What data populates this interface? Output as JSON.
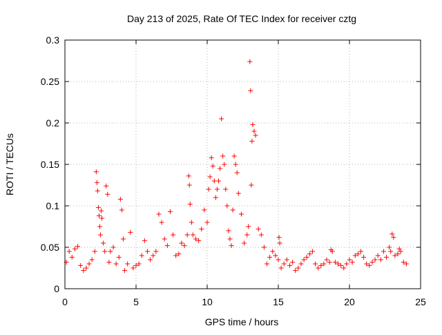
{
  "chart_data": {
    "type": "scatter",
    "title": "Day 213 of 2025, Rate Of TEC Index for receiver cztg",
    "xlabel": "GPS time / hours",
    "ylabel": "ROTI / TECUs",
    "xlim": [
      0,
      25
    ],
    "ylim": [
      0,
      0.3
    ],
    "x_ticks": [
      "0",
      "5",
      "10",
      "15",
      "20",
      "25"
    ],
    "y_ticks": [
      "0",
      "0.05",
      "0.1",
      "0.15",
      "0.2",
      "0.25",
      "0.3"
    ],
    "grid": true,
    "marker": "+",
    "legend": "none",
    "colors": {
      "points": "#ff0000",
      "grid": "#b0b0b0",
      "axis": "#000000"
    },
    "series": [
      {
        "x": [
          0.1,
          0.3,
          0.5,
          0.7,
          0.9,
          1.1,
          1.3,
          1.5,
          1.7,
          1.9,
          2.1,
          2.2,
          2.25,
          2.3,
          2.35,
          2.4,
          2.45,
          2.5,
          2.55,
          2.6,
          2.7,
          2.8,
          2.9,
          3.0,
          3.1,
          3.2,
          3.4,
          3.6,
          3.8,
          3.9,
          4.0,
          4.1,
          4.2,
          4.4,
          4.6,
          4.8,
          5.0,
          5.2,
          5.4,
          5.6,
          5.8,
          6.0,
          6.2,
          6.4,
          6.6,
          6.8,
          7.0,
          7.2,
          7.4,
          7.6,
          7.8,
          8.0,
          8.2,
          8.4,
          8.6,
          8.7,
          8.75,
          8.8,
          8.9,
          9.0,
          9.2,
          9.4,
          9.6,
          9.8,
          10.0,
          10.1,
          10.2,
          10.3,
          10.4,
          10.5,
          10.6,
          10.7,
          10.8,
          10.9,
          11.0,
          11.1,
          11.2,
          11.3,
          11.4,
          11.5,
          11.6,
          11.7,
          11.8,
          11.9,
          12.0,
          12.1,
          12.2,
          12.4,
          12.6,
          12.8,
          12.9,
          13.0,
          13.05,
          13.1,
          13.15,
          13.2,
          13.3,
          13.4,
          13.6,
          13.8,
          14.0,
          14.2,
          14.4,
          14.6,
          14.8,
          15.0,
          15.05,
          15.1,
          15.2,
          15.4,
          15.6,
          15.8,
          16.0,
          16.2,
          16.4,
          16.6,
          16.8,
          17.0,
          17.2,
          17.4,
          17.6,
          17.8,
          18.0,
          18.2,
          18.4,
          18.6,
          18.7,
          18.8,
          19.0,
          19.2,
          19.4,
          19.6,
          19.8,
          20.0,
          20.2,
          20.4,
          20.6,
          20.8,
          21.0,
          21.2,
          21.4,
          21.6,
          21.8,
          22.0,
          22.2,
          22.4,
          22.6,
          22.8,
          22.9,
          23.0,
          23.1,
          23.2,
          23.4,
          23.5,
          23.6,
          23.8,
          24.0
        ],
        "y": [
          0.032,
          0.045,
          0.038,
          0.048,
          0.051,
          0.028,
          0.022,
          0.025,
          0.03,
          0.035,
          0.045,
          0.141,
          0.128,
          0.118,
          0.098,
          0.088,
          0.075,
          0.065,
          0.094,
          0.085,
          0.055,
          0.045,
          0.124,
          0.114,
          0.032,
          0.045,
          0.05,
          0.03,
          0.038,
          0.108,
          0.095,
          0.06,
          0.022,
          0.03,
          0.068,
          0.025,
          0.028,
          0.03,
          0.04,
          0.058,
          0.045,
          0.035,
          0.04,
          0.045,
          0.09,
          0.08,
          0.06,
          0.052,
          0.093,
          0.065,
          0.04,
          0.042,
          0.055,
          0.052,
          0.065,
          0.136,
          0.125,
          0.102,
          0.08,
          0.065,
          0.06,
          0.058,
          0.072,
          0.095,
          0.08,
          0.12,
          0.135,
          0.158,
          0.148,
          0.13,
          0.11,
          0.12,
          0.13,
          0.145,
          0.205,
          0.16,
          0.15,
          0.12,
          0.1,
          0.07,
          0.06,
          0.052,
          0.095,
          0.16,
          0.15,
          0.14,
          0.115,
          0.09,
          0.055,
          0.065,
          0.075,
          0.274,
          0.239,
          0.125,
          0.178,
          0.198,
          0.19,
          0.185,
          0.072,
          0.065,
          0.05,
          0.03,
          0.038,
          0.045,
          0.04,
          0.035,
          0.062,
          0.055,
          0.025,
          0.03,
          0.035,
          0.028,
          0.032,
          0.022,
          0.025,
          0.03,
          0.035,
          0.038,
          0.042,
          0.045,
          0.03,
          0.025,
          0.028,
          0.03,
          0.035,
          0.032,
          0.047,
          0.045,
          0.032,
          0.03,
          0.028,
          0.025,
          0.03,
          0.035,
          0.032,
          0.04,
          0.042,
          0.045,
          0.038,
          0.03,
          0.028,
          0.032,
          0.035,
          0.04,
          0.035,
          0.045,
          0.038,
          0.05,
          0.045,
          0.066,
          0.062,
          0.04,
          0.042,
          0.048,
          0.045,
          0.032,
          0.03
        ]
      }
    ]
  }
}
